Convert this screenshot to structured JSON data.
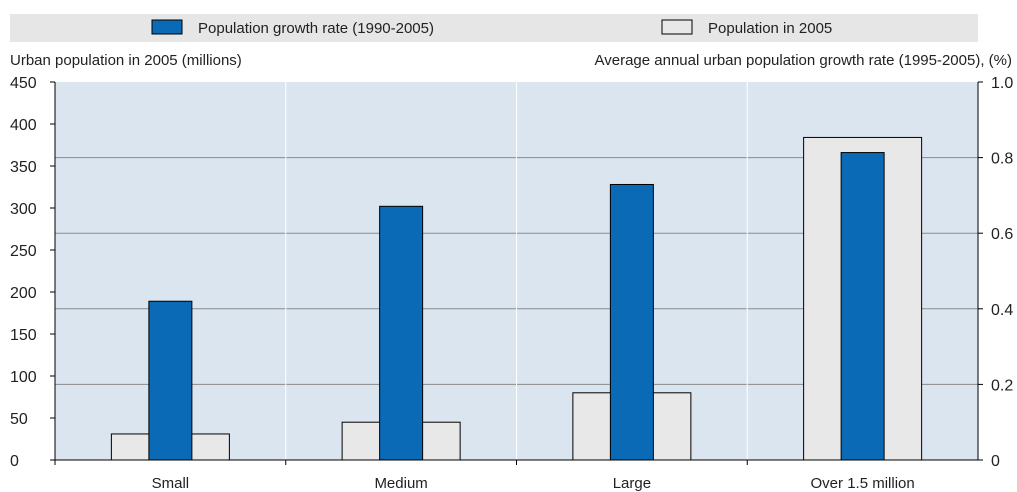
{
  "chart_data": {
    "type": "bar",
    "categories": [
      "Small",
      "Medium",
      "Large",
      "Over 1.5 million"
    ],
    "series": [
      {
        "name": "Population growth rate (1990-2005)",
        "axis": "left",
        "color": "#0a6ab6",
        "values": [
          189,
          302,
          328,
          366
        ]
      },
      {
        "name": "Population in 2005",
        "axis": "left",
        "color": "#e8e8e8",
        "values": [
          31,
          45,
          80,
          384
        ]
      }
    ],
    "ylabel": "Urban population in 2005 (millions)",
    "y2label": "Average annual urban population growth rate (1995-2005), (%)",
    "ylim": [
      0,
      450
    ],
    "y2lim": [
      0,
      1.0
    ],
    "yticks": [
      "0",
      "50",
      "100",
      "150",
      "200",
      "250",
      "300",
      "350",
      "400",
      "450"
    ],
    "y2ticks": [
      "0",
      "0.2",
      "0.4",
      "0.6",
      "0.8",
      "1.0"
    ],
    "y2tick_values": [
      0,
      0.2,
      0.4,
      0.6,
      0.8,
      1.0
    ],
    "grid": true,
    "legend_position": "top"
  }
}
